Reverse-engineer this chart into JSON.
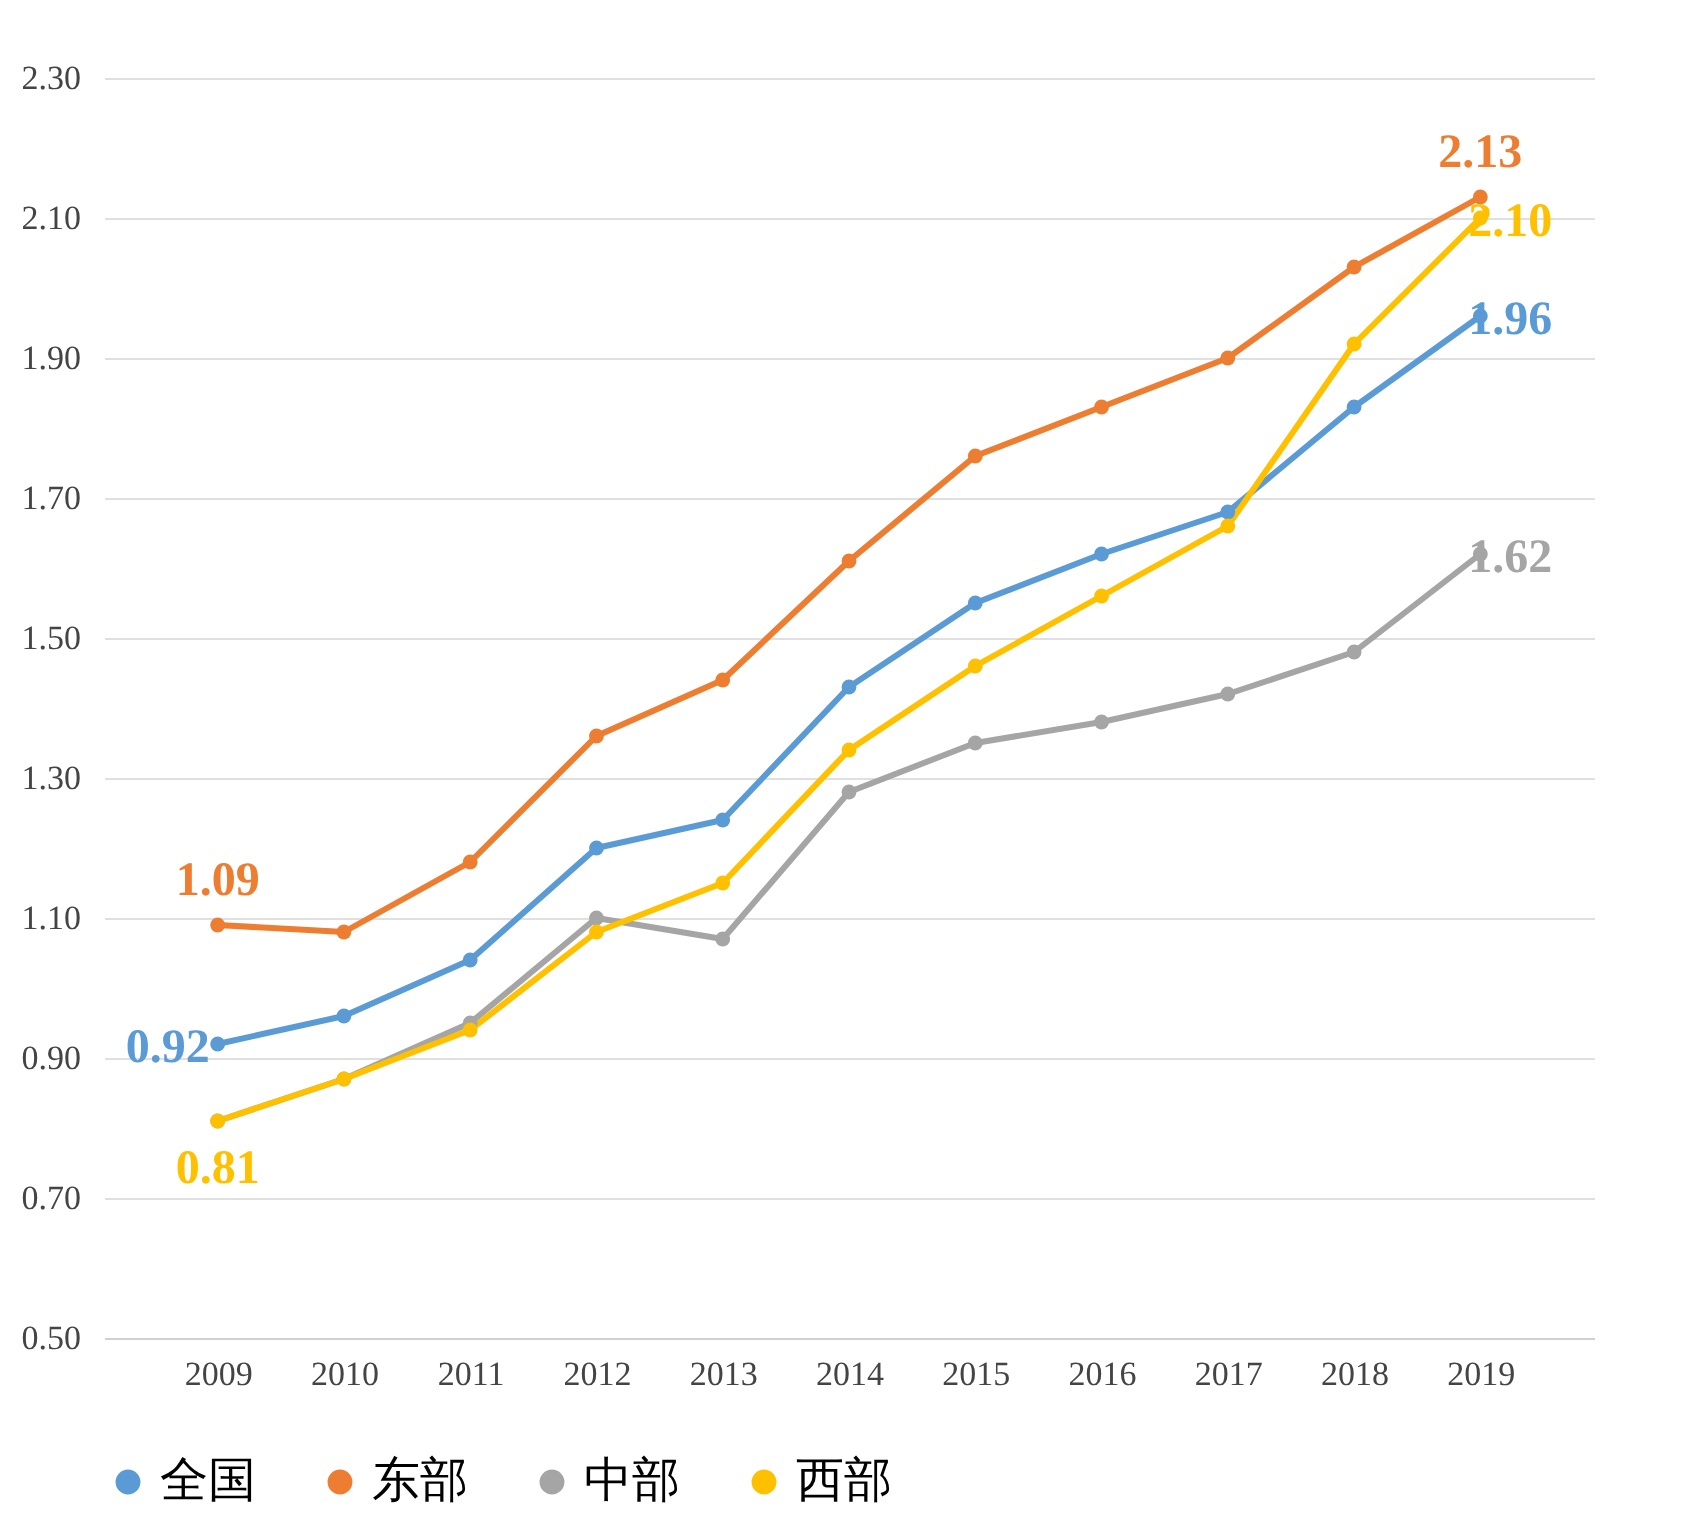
{
  "chart_data": {
    "type": "line",
    "categories": [
      "2009",
      "2010",
      "2011",
      "2012",
      "2013",
      "2014",
      "2015",
      "2016",
      "2017",
      "2018",
      "2019"
    ],
    "series": [
      {
        "name": "全国",
        "color": "#5b9bd5",
        "values": [
          0.92,
          0.96,
          1.04,
          1.2,
          1.24,
          1.43,
          1.55,
          1.62,
          1.68,
          1.83,
          1.96
        ],
        "value_labels": [
          "0.92",
          null,
          null,
          null,
          null,
          null,
          null,
          null,
          null,
          null,
          "1.96"
        ]
      },
      {
        "name": "东部",
        "color": "#ed7d31",
        "values": [
          1.09,
          1.08,
          1.18,
          1.36,
          1.44,
          1.61,
          1.76,
          1.83,
          1.9,
          2.03,
          2.13
        ],
        "value_labels": [
          "1.09",
          null,
          null,
          null,
          null,
          null,
          null,
          null,
          null,
          null,
          "2.13"
        ]
      },
      {
        "name": "中部",
        "color": "#a5a5a5",
        "values": [
          0.81,
          0.87,
          0.95,
          1.1,
          1.07,
          1.28,
          1.35,
          1.38,
          1.42,
          1.48,
          1.62
        ],
        "value_labels": [
          null,
          null,
          null,
          null,
          null,
          null,
          null,
          null,
          null,
          null,
          "1.62"
        ]
      },
      {
        "name": "西部",
        "color": "#ffc000",
        "values": [
          0.81,
          0.87,
          0.94,
          1.08,
          1.15,
          1.34,
          1.46,
          1.56,
          1.66,
          1.92,
          2.1
        ],
        "value_labels": [
          "0.81",
          null,
          null,
          null,
          null,
          null,
          null,
          null,
          null,
          null,
          "2.10"
        ]
      }
    ],
    "ylim": [
      0.5,
      2.3
    ],
    "yticks": [
      {
        "value": 0.5,
        "label": "0.50"
      },
      {
        "value": 0.7,
        "label": "0.70"
      },
      {
        "value": 0.9,
        "label": "0.90"
      },
      {
        "value": 1.1,
        "label": "1.10"
      },
      {
        "value": 1.3,
        "label": "1.30"
      },
      {
        "value": 1.5,
        "label": "1.50"
      },
      {
        "value": 1.7,
        "label": "1.70"
      },
      {
        "value": 1.9,
        "label": "1.90"
      },
      {
        "value": 2.1,
        "label": "2.10"
      },
      {
        "value": 2.3,
        "label": "2.30"
      }
    ],
    "grid": "y",
    "legend": "bottom",
    "marker": "circle",
    "line_style": "solid"
  }
}
